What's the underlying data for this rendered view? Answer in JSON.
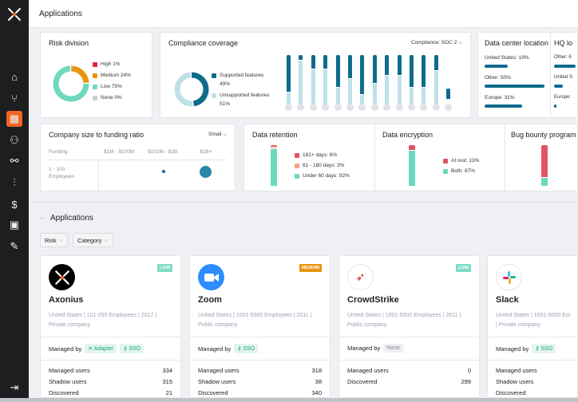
{
  "header": {
    "title": "Applications"
  },
  "sidebar": {
    "items": [
      "home",
      "branch",
      "applications",
      "users",
      "integrations",
      "settings-sliders",
      "billing",
      "calendar",
      "campaigns"
    ],
    "logout": "logout"
  },
  "colors": {
    "accent": "#f26522",
    "teal": "#0f6b8c",
    "light_teal": "#bfe0e8",
    "green": "#6dd9bd",
    "orange": "#e8960f",
    "red": "#e05563",
    "salmon": "#f7a27f",
    "gray": "#c7cad6"
  },
  "risk": {
    "title": "Risk division",
    "items": [
      {
        "label": "High 1%",
        "value": 1,
        "color": "#e8233d"
      },
      {
        "label": "Medium 24%",
        "value": 24,
        "color": "#e8960f"
      },
      {
        "label": "Low 75%",
        "value": 75,
        "color": "#6dd9bd"
      },
      {
        "label": "None 0%",
        "value": 0,
        "color": "#c7cad6"
      }
    ]
  },
  "compliance": {
    "title": "Compliance coverage",
    "selector": "Compliance: SOC 2",
    "supported_label": "Supported features",
    "supported_pct": "49%",
    "unsupported_label": "Unsupported features",
    "unsupported_pct": "51%",
    "supported": 49,
    "bars": [
      0.75,
      0.12,
      0.29,
      0.29,
      0.66,
      0.49,
      0.8,
      0.58,
      0.42,
      0.42,
      0.66,
      0.66,
      0.33,
      1
    ]
  },
  "datacenter": {
    "title": "Data center location",
    "items": [
      {
        "label": "United States: 19%",
        "value": 19
      },
      {
        "label": "Other: 50%",
        "value": 50
      },
      {
        "label": "Europe: 31%",
        "value": 31
      }
    ]
  },
  "hq": {
    "title": "HQ lo",
    "items": [
      {
        "label": "Other: 6",
        "value": 60
      },
      {
        "label": "United S",
        "value": 25
      },
      {
        "label": "Europe:",
        "value": 7
      }
    ]
  },
  "funding": {
    "title": "Company size to funding ratio",
    "selector": "Small",
    "row_header": "Funding",
    "columns": [
      "$1M - $100M",
      "$101M - $1B",
      "$1B+"
    ],
    "rows": [
      "1 - 100 Employees"
    ]
  },
  "retention": {
    "title": "Data retention",
    "items": [
      {
        "label": "181+ days: 6%",
        "value": 6,
        "color": "#e05563"
      },
      {
        "label": "61 - 180 days: 3%",
        "value": 3,
        "color": "#f7a27f"
      },
      {
        "label": "Under 60 days: 92%",
        "value": 92,
        "color": "#6dd9bd"
      }
    ]
  },
  "encryption": {
    "title": "Data encryption",
    "items": [
      {
        "label": "At rest: 13%",
        "value": 13,
        "color": "#e05563"
      },
      {
        "label": "Both: 87%",
        "value": 87,
        "color": "#6dd9bd"
      }
    ]
  },
  "bounty": {
    "title": "Bug bounty program",
    "items": [
      {
        "label": "N",
        "value": 78,
        "color": "#e05563"
      },
      {
        "label": "Y",
        "value": 22,
        "color": "#6dd9bd"
      }
    ]
  },
  "apps_section": {
    "title": "Applications",
    "filters": [
      "Risk",
      "Category"
    ]
  },
  "apps": [
    {
      "name": "Axonius",
      "risk": "LOW",
      "desc": "United States | 101-250 Employees | 2017 | Private company",
      "managed_label": "Managed by",
      "tags": [
        "Adapter",
        "SSO"
      ],
      "stats": [
        [
          "Managed users",
          "334"
        ],
        [
          "Shadow users",
          "315"
        ],
        [
          "Discovered",
          "21"
        ]
      ]
    },
    {
      "name": "Zoom",
      "risk": "MEDIUM",
      "desc": "United States | 1001-5000 Employees | 2011 | Public company",
      "managed_label": "Managed by",
      "tags": [
        "SSO"
      ],
      "stats": [
        [
          "Managed users",
          "318"
        ],
        [
          "Shadow users",
          "38"
        ],
        [
          "Discovered",
          "340"
        ]
      ]
    },
    {
      "name": "CrowdStrike",
      "risk": "LOW",
      "desc": "United States | 1001-5000 Employees | 2011 | Public company",
      "managed_label": "Managed by",
      "tags": [
        "None"
      ],
      "stats": [
        [
          "Managed users",
          "0"
        ],
        [
          "Discovered",
          "299"
        ]
      ]
    },
    {
      "name": "Slack",
      "risk": "",
      "desc": "United States | 1001-5000 Em | Private company",
      "managed_label": "Managed by",
      "tags": [
        "SSO"
      ],
      "stats": [
        [
          "Managed users",
          ""
        ],
        [
          "Shadow users",
          ""
        ],
        [
          "Discovered",
          ""
        ]
      ]
    }
  ]
}
